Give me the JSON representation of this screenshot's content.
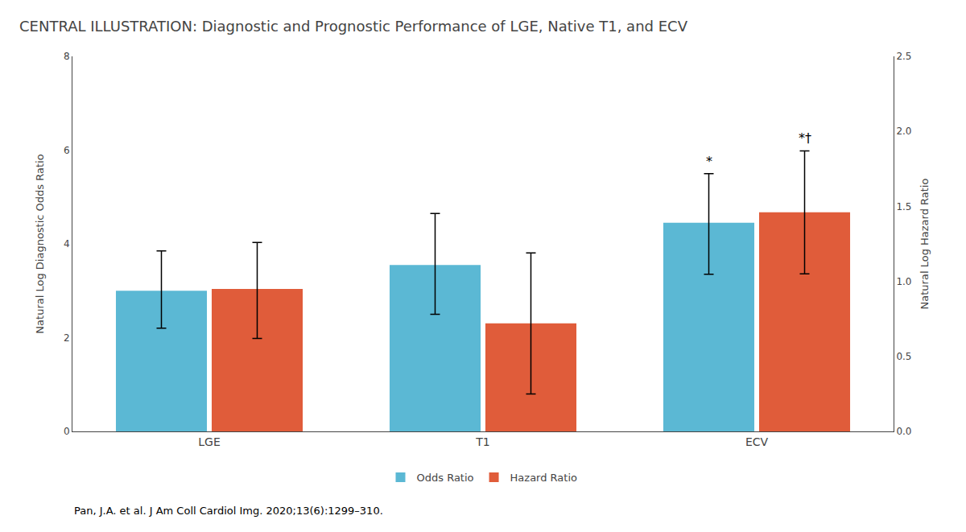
{
  "chart_data": {
    "type": "bar",
    "title": "CENTRAL ILLUSTRATION: Diagnostic and Prognostic Performance of LGE, Native T1, and ECV",
    "categories": [
      "LGE",
      "T1",
      "ECV"
    ],
    "series": [
      {
        "name": "Odds Ratio",
        "color": "#5BB8D4",
        "values": [
          3.0,
          3.55,
          4.45
        ],
        "error_low": [
          0.8,
          1.05,
          1.1
        ],
        "error_high": [
          0.85,
          1.1,
          1.05
        ]
      },
      {
        "name": "Hazard Ratio",
        "color": "#E05C3A",
        "axis": "y2",
        "values": [
          0.95,
          0.72,
          1.46
        ],
        "error_low": [
          0.33,
          0.47,
          0.41
        ],
        "error_high": [
          0.31,
          0.47,
          0.41
        ]
      }
    ],
    "ylabel": "Natural Log Diagnostic Odds Ratio",
    "y2label": "Natural Log Hazard Ratio",
    "ylim": [
      0,
      8
    ],
    "yticks": [
      0,
      2,
      4,
      6,
      8
    ],
    "y2lim": [
      0.0,
      2.5
    ],
    "y2ticks": [
      {
        "value": 0,
        "label": "0.0"
      },
      0.5,
      {
        "value": 1,
        "label": "1.0"
      },
      1.5,
      {
        "value": 2,
        "label": "2.0"
      },
      2.5
    ],
    "annotations": [
      {
        "text": "*",
        "x": "ECV",
        "series": "Odds Ratio"
      },
      {
        "text": "*†",
        "x": "ECV",
        "series": "Hazard Ratio"
      },
      {
        "text": "Pan, J.A. et al. J Am Coll Cardiol Img. 2020;13(6):1299–310."
      }
    ],
    "grid": false,
    "legend": "bottom"
  }
}
